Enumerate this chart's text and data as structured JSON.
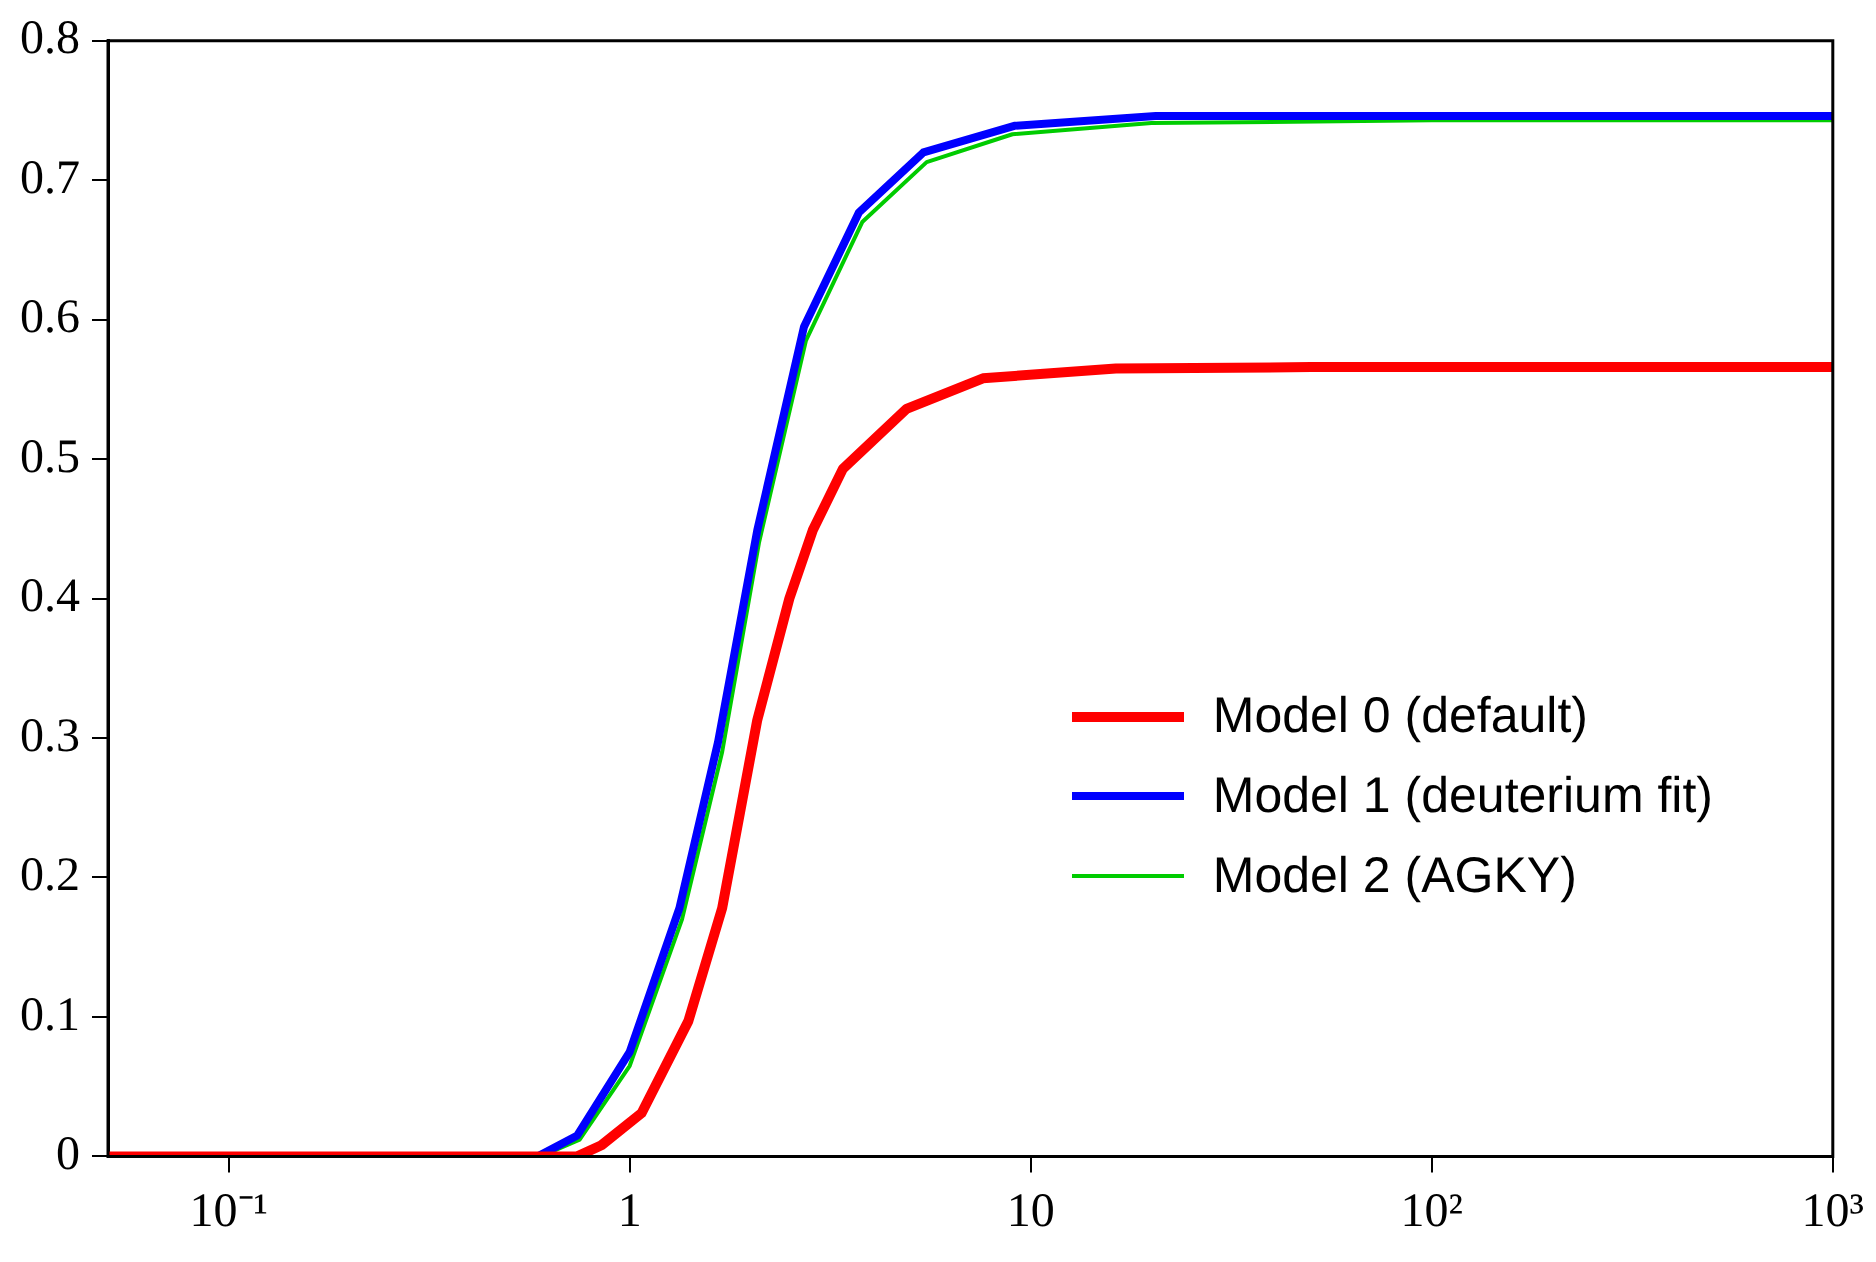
{
  "chart_data": {
    "type": "line",
    "log": "x",
    "xlim": [
      0.05,
      1000
    ],
    "xticks": [
      {
        "value": 0.1,
        "label": "10⁻¹"
      },
      1,
      10,
      {
        "value": 100,
        "label": "10²"
      },
      {
        "value": 1000,
        "label": "10³"
      }
    ],
    "ylim": [
      0,
      0.8
    ],
    "yticks": [
      0,
      0.1,
      0.2,
      0.3,
      0.4,
      0.5,
      0.6,
      0.7,
      0.8
    ],
    "grid": false,
    "legend": "right",
    "marker": "none",
    "line_style": "solid",
    "series": [
      {
        "name": "Model 0 (default)",
        "color": "#ff0000",
        "x": [
          0.05,
          0.6,
          0.74,
          0.85,
          1.07,
          1.4,
          1.7,
          2.08,
          2.5,
          2.86,
          3.4,
          4.9,
          7.6,
          16.3,
          50,
          1000
        ],
        "values": [
          0,
          0,
          0,
          0.008,
          0.031,
          0.097,
          0.178,
          0.313,
          0.4,
          0.449,
          0.493,
          0.536,
          0.558,
          0.565,
          0.566,
          0.566
        ]
      },
      {
        "name": "Model 1 (deuterium fit)",
        "color": "#0000ff",
        "x": [
          0.05,
          0.59,
          0.74,
          1.0,
          1.33,
          1.66,
          2.08,
          2.72,
          3.73,
          5.4,
          9.1,
          20.5,
          100,
          1000
        ],
        "values": [
          0,
          0,
          0.015,
          0.075,
          0.178,
          0.297,
          0.449,
          0.595,
          0.677,
          0.72,
          0.739,
          0.746,
          0.746,
          0.746
        ]
      },
      {
        "name": "Model 2 (AGKY)",
        "color": "#00cc00",
        "x": [
          0.05,
          0.6,
          0.75,
          1.0,
          1.35,
          1.7,
          2.1,
          2.75,
          3.8,
          5.5,
          9,
          20,
          100,
          1000
        ],
        "values": [
          0,
          0,
          0.012,
          0.065,
          0.17,
          0.29,
          0.44,
          0.585,
          0.67,
          0.713,
          0.733,
          0.741,
          0.743,
          0.743
        ]
      }
    ]
  }
}
